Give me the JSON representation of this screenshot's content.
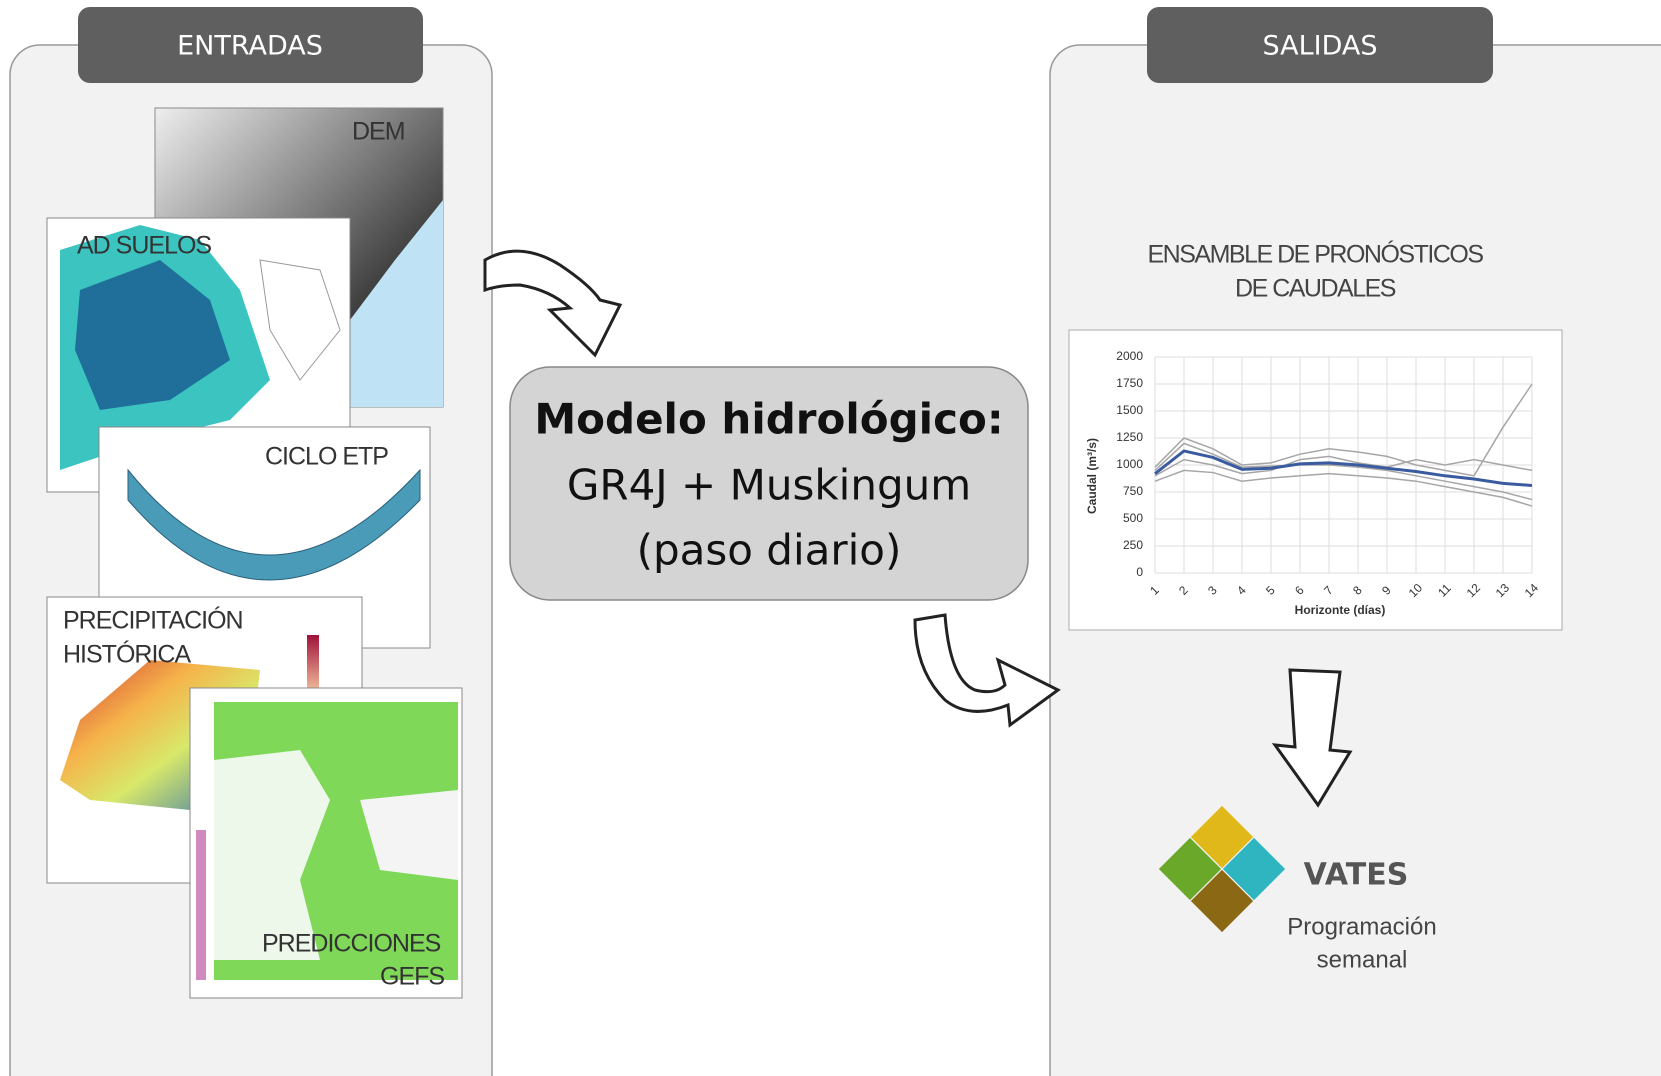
{
  "inputs": {
    "title": "ENTRADAS",
    "items": [
      [
        "DEM"
      ],
      [
        "AD SUELOS"
      ],
      [
        "CICLO ETP"
      ],
      [
        "PRECIPITACIÓN",
        "HISTÓRICA"
      ],
      [
        "PREDICCIONES",
        "GEFS"
      ]
    ]
  },
  "model": {
    "lines": [
      "Modelo hidrológico:",
      "GR4J + Muskingum",
      "(paso diario)"
    ]
  },
  "outputs": {
    "title": "SALIDAS",
    "chart_title": [
      "ENSAMBLE DE PRONÓSTICOS",
      "DE CAUDALES"
    ],
    "chart_data": {
      "type": "line",
      "x_label": "Horizonte (días)",
      "y_label": "Caudal (m³/s)",
      "x": [
        1,
        2,
        3,
        4,
        5,
        6,
        7,
        8,
        9,
        10,
        11,
        12,
        13,
        14
      ],
      "xlim": [
        1,
        14
      ],
      "xticks": [
        1,
        2,
        3,
        4,
        5,
        6,
        7,
        8,
        9,
        10,
        11,
        12,
        13,
        14
      ],
      "ylim": [
        0,
        2000
      ],
      "yticks": [
        0,
        250,
        500,
        750,
        1000,
        1250,
        1500,
        1750,
        2000
      ],
      "grid": true,
      "series": [
        {
          "color": "#a6a6a6",
          "values": [
            980,
            1250,
            1150,
            1000,
            1020,
            1100,
            1150,
            1120,
            1080,
            1000,
            950,
            900,
            1350,
            1750
          ]
        },
        {
          "color": "#a6a6a6",
          "values": [
            850,
            950,
            930,
            850,
            880,
            900,
            920,
            900,
            880,
            850,
            800,
            750,
            700,
            620
          ]
        },
        {
          "color": "#a6a6a6",
          "values": [
            900,
            1050,
            1000,
            920,
            950,
            1050,
            1080,
            1020,
            980,
            1050,
            1000,
            1050,
            1000,
            950
          ]
        },
        {
          "color": "#a6a6a6",
          "values": [
            950,
            1200,
            1100,
            980,
            990,
            1000,
            1000,
            980,
            950,
            900,
            850,
            800,
            750,
            680
          ]
        },
        {
          "color": "#3a5ba0",
          "values": [
            920,
            1130,
            1070,
            960,
            970,
            1010,
            1020,
            1000,
            970,
            940,
            900,
            870,
            830,
            810
          ]
        }
      ]
    },
    "logo": {
      "name": "VATES",
      "subtitle": [
        "Programación",
        "semanal"
      ]
    }
  }
}
